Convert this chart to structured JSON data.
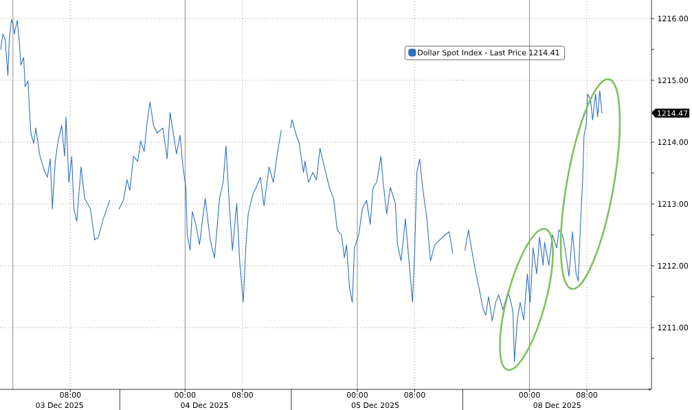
{
  "chart_data": [
    {
      "type": "line",
      "x": [
        "2025-12-02T22:18",
        "2025-12-02T22:36",
        "2025-12-02T22:54",
        "2025-12-02T23:18",
        "2025-12-02T23:30",
        "2025-12-02T23:48",
        "2025-12-03T00:00",
        "2025-12-03T00:12",
        "2025-12-03T00:36",
        "2025-12-03T00:54",
        "2025-12-03T01:06",
        "2025-12-03T01:30",
        "2025-12-03T01:42",
        "2025-12-03T02:06",
        "2025-12-03T02:18",
        "2025-12-03T02:30",
        "2025-12-03T02:54",
        "2025-12-03T03:12",
        "2025-12-03T03:42",
        "2025-12-03T04:18",
        "2025-12-03T04:48",
        "2025-12-03T05:12",
        "2025-12-03T05:30",
        "2025-12-03T05:54",
        "2025-12-03T06:18",
        "2025-12-03T06:48",
        "2025-12-03T07:12",
        "2025-12-03T07:24",
        "2025-12-03T07:48",
        "2025-12-03T08:12",
        "2025-12-03T08:30",
        "2025-12-03T08:54",
        "2025-12-03T09:30",
        "2025-12-03T10:00",
        "2025-12-03T10:48",
        "2025-12-03T11:24",
        "2025-12-03T11:54",
        "2025-12-03T12:36",
        "2025-12-03T13:30",
        "2025-12-03T14:12",
        "2025-12-03T14:48",
        "2025-12-03T15:24",
        "2025-12-03T15:54",
        "2025-12-03T16:18",
        "2025-12-03T16:48",
        "2025-12-03T17:24",
        "2025-12-03T17:48",
        "2025-12-03T18:18",
        "2025-12-03T18:42",
        "2025-12-03T19:06",
        "2025-12-03T19:36",
        "2025-12-03T20:06",
        "2025-12-03T20:54",
        "2025-12-03T21:30",
        "2025-12-03T21:54",
        "2025-12-03T22:24",
        "2025-12-03T22:48",
        "2025-12-03T23:18",
        "2025-12-03T23:42",
        "2025-12-04T00:06",
        "2025-12-04T00:18",
        "2025-12-04T00:42",
        "2025-12-04T01:00",
        "2025-12-04T01:30",
        "2025-12-04T02:00",
        "2025-12-04T02:48",
        "2025-12-04T03:30",
        "2025-12-04T04:06",
        "2025-12-04T04:48",
        "2025-12-04T05:18",
        "2025-12-04T05:42",
        "2025-12-04T06:12",
        "2025-12-04T06:36",
        "2025-12-04T07:12",
        "2025-12-04T07:36",
        "2025-12-04T08:06",
        "2025-12-04T08:30",
        "2025-12-04T08:48",
        "2025-12-04T09:24",
        "2025-12-04T09:54",
        "2025-12-04T10:30",
        "2025-12-04T11:00",
        "2025-12-04T11:42",
        "2025-12-04T12:18",
        "2025-12-04T12:48",
        "2025-12-04T13:24",
        "2025-12-04T14:00",
        "2025-12-04T14:42",
        "2025-12-04T14:54",
        "2025-12-04T15:24",
        "2025-12-04T15:54",
        "2025-12-04T16:30",
        "2025-12-04T16:42",
        "2025-12-04T17:12",
        "2025-12-04T17:48",
        "2025-12-04T18:18",
        "2025-12-04T18:48",
        "2025-12-04T19:36",
        "2025-12-04T20:06",
        "2025-12-04T20:42",
        "2025-12-04T21:12",
        "2025-12-04T21:48",
        "2025-12-04T22:12",
        "2025-12-04T22:30",
        "2025-12-04T22:54",
        "2025-12-04T23:18",
        "2025-12-04T23:36",
        "2025-12-05T00:12",
        "2025-12-05T00:42",
        "2025-12-05T01:18",
        "2025-12-05T01:48",
        "2025-12-05T02:12",
        "2025-12-05T02:42",
        "2025-12-05T03:18",
        "2025-12-05T03:36",
        "2025-12-05T04:06",
        "2025-12-05T04:36",
        "2025-12-05T05:18",
        "2025-12-05T05:36",
        "2025-12-05T06:06",
        "2025-12-05T06:42",
        "2025-12-05T07:12",
        "2025-12-05T07:42",
        "2025-12-05T08:00",
        "2025-12-05T08:18",
        "2025-12-05T08:42",
        "2025-12-05T09:06",
        "2025-12-05T09:42",
        "2025-12-05T10:12",
        "2025-12-05T10:48",
        "2025-12-05T11:30",
        "2025-12-05T12:12",
        "2025-12-05T12:48",
        "2025-12-05T13:18"
      ],
      "series": [
        {
          "name": "Dollar Spot Index - Last Price 1214.41",
          "color": "#2f6fbf",
          "values": [
            1215.5,
            1215.75,
            1215.67,
            1215.08,
            1215.67,
            1215.98,
            1215.92,
            1215.75,
            1215.97,
            1215.62,
            1215.25,
            1215.37,
            1214.9,
            1214.99,
            1214.53,
            1214.15,
            1213.98,
            1214.23,
            1213.81,
            1213.56,
            1213.43,
            1213.73,
            1212.92,
            1213.69,
            1214.02,
            1214.27,
            1213.77,
            1214.41,
            1213.35,
            1213.77,
            1212.92,
            1212.72,
            1213.6,
            1213.09,
            1212.92,
            1212.42,
            1212.46,
            1212.76,
            1213.06,
            null,
            1212.92,
            1213.06,
            1213.39,
            1213.22,
            1213.77,
            1213.69,
            1214.02,
            1213.85,
            1214.32,
            1214.65,
            1214.27,
            1214.15,
            1214.23,
            1213.73,
            1214.48,
            1214.11,
            1213.81,
            1214.11,
            1213.6,
            1213.27,
            1212.5,
            1212.25,
            1212.88,
            1212.67,
            1212.34,
            1213.09,
            1212.42,
            1212.13,
            1213.09,
            1213.35,
            1213.94,
            1212.92,
            1212.25,
            1213.01,
            1212.08,
            1211.41,
            1212.38,
            1212.84,
            1213.14,
            1213.27,
            1213.43,
            1212.97,
            1213.6,
            1213.35,
            1213.77,
            1214.19,
            null,
            1214.23,
            1214.36,
            1214.15,
            1213.98,
            1213.51,
            1213.69,
            1213.35,
            1213.51,
            1213.39,
            1213.9,
            1213.51,
            1213.27,
            1213.09,
            1212.58,
            1212.5,
            1212.13,
            1212.34,
            1211.66,
            1211.41,
            1212.29,
            1212.5,
            1212.92,
            1213.06,
            1212.67,
            1213.27,
            1213.35,
            1213.77,
            1213.35,
            1212.84,
            1213.27,
            1213.01,
            1212.34,
            1212.08,
            1212.76,
            1212.08,
            1211.41,
            1212.25,
            1213.51,
            1213.73,
            1213.27,
            1212.76,
            1212.08,
            1212.34,
            1212.42,
            1212.5,
            1212.55,
            1212.2
          ]
        }
      ],
      "xlim": [
        "2025-12-02T22:12",
        "2025-12-05T14:42"
      ],
      "ylim": [
        1210.0,
        1216.3
      ],
      "xticks": [
        {
          "value": "2025-12-03T08:00",
          "label": "08:00"
        },
        {
          "value": "2025-12-03T14:54",
          "label": null
        },
        {
          "value": "2025-12-04T00:00",
          "label": "00:00"
        },
        {
          "value": "2025-12-04T08:00",
          "label": "08:00"
        },
        {
          "value": "2025-12-04T14:48",
          "label": null
        },
        {
          "value": "2025-12-05T00:00",
          "label": "00:00"
        },
        {
          "value": "2025-12-05T08:00",
          "label": "08:00"
        }
      ],
      "x2lim": [
        "2025-12-02T22:12",
        "2025-12-05T14:42"
      ],
      "x2ticks": [
        {
          "value": "2025-12-03T06:30",
          "label": "03 Dec 2025"
        },
        {
          "value": "2025-12-04T02:42",
          "label": "04 Dec 2025"
        },
        {
          "value": "2025-12-05T02:30",
          "label": "05 Dec 2025"
        }
      ],
      "yticks": [
        1211,
        1212,
        1213,
        1214,
        1215,
        1216
      ],
      "tick_labels": "x",
      "ref_lines": [
        {
          "axis": "x",
          "value": "2025-12-03T00:00",
          "color": "#707070",
          "line_style": "solid"
        }
      ],
      "grid": true,
      "legend": "top right"
    },
    {
      "type": "line",
      "xlabel": "08 Dec 2025",
      "x": [
        "2025-12-07T15:00",
        "2025-12-07T15:30",
        "2025-12-07T15:54",
        "2025-12-07T16:24",
        "2025-12-07T17:00",
        "2025-12-07T17:30",
        "2025-12-07T17:54",
        "2025-12-07T18:18",
        "2025-12-07T18:48",
        "2025-12-07T19:18",
        "2025-12-07T19:42",
        "2025-12-07T20:18",
        "2025-12-07T21:00",
        "2025-12-07T21:30",
        "2025-12-07T21:42",
        "2025-12-07T21:54",
        "2025-12-07T22:18",
        "2025-12-07T22:42",
        "2025-12-07T23:12",
        "2025-12-07T23:42",
        "2025-12-08T00:06",
        "2025-12-08T00:30",
        "2025-12-08T01:00",
        "2025-12-08T01:24",
        "2025-12-08T01:54",
        "2025-12-08T02:06",
        "2025-12-08T02:42",
        "2025-12-08T03:12",
        "2025-12-08T03:48",
        "2025-12-08T04:06",
        "2025-12-08T04:36",
        "2025-12-08T05:00",
        "2025-12-08T05:30",
        "2025-12-08T06:00",
        "2025-12-08T06:30",
        "2025-12-08T06:48",
        "2025-12-08T07:06",
        "2025-12-08T07:24",
        "2025-12-08T07:36",
        "2025-12-08T07:54",
        "2025-12-08T08:06",
        "2025-12-08T08:30",
        "2025-12-08T08:48",
        "2025-12-08T09:12",
        "2025-12-08T09:30",
        "2025-12-08T09:48",
        "2025-12-08T10:06"
      ],
      "series": [
        {
          "color": "#2f6fbf",
          "values": [
            1212.25,
            1212.58,
            1212.29,
            1211.96,
            1211.62,
            1211.32,
            1211.2,
            1211.5,
            1211.11,
            1211.41,
            1211.53,
            1211.29,
            1211.58,
            1211.37,
            1211.24,
            1210.45,
            1211.12,
            1211.41,
            1211.12,
            1211.87,
            1211.41,
            1212.29,
            1211.87,
            1212.46,
            1212.01,
            1212.38,
            1212.01,
            1212.5,
            1212.29,
            1212.58,
            1212.5,
            1212.25,
            1211.83,
            1212.55,
            1211.87,
            1211.75,
            1212.67,
            1213.35,
            1214.11,
            1214.27,
            1214.78,
            1214.69,
            1214.36,
            1214.78,
            1214.41,
            1214.83,
            1214.47
          ]
        }
      ],
      "xlim": [
        "2025-12-07T14:42",
        "2025-12-08T17:00"
      ],
      "ylim": [
        1210.0,
        1216.3
      ],
      "xticks": [
        {
          "value": "2025-12-08T00:00",
          "label": "00:00"
        },
        {
          "value": "2025-12-08T08:00",
          "label": "08:00"
        }
      ],
      "yticks": [
        {
          "value": 1210.5,
          "label": null
        },
        {
          "value": 1211,
          "label": "1211.00"
        },
        {
          "value": 1211.5,
          "label": null
        },
        {
          "value": 1212,
          "label": "1212.00"
        },
        {
          "value": 1212.5,
          "label": null
        },
        {
          "value": 1213,
          "label": "1213.00"
        },
        {
          "value": 1213.5,
          "label": null
        },
        {
          "value": 1214,
          "label": "1214.00"
        },
        {
          "value": 1214.5,
          "label": null
        },
        {
          "value": 1215,
          "label": "1215.00"
        },
        {
          "value": 1215.5,
          "label": null
        },
        {
          "value": 1216,
          "label": "1216.00"
        }
      ],
      "ref_lines": [
        {
          "axis": "x",
          "value": "2025-12-08T00:00",
          "color": "#707070",
          "line_style": "solid"
        }
      ],
      "annotations": [
        "1214.47"
      ],
      "grid": true
    }
  ]
}
